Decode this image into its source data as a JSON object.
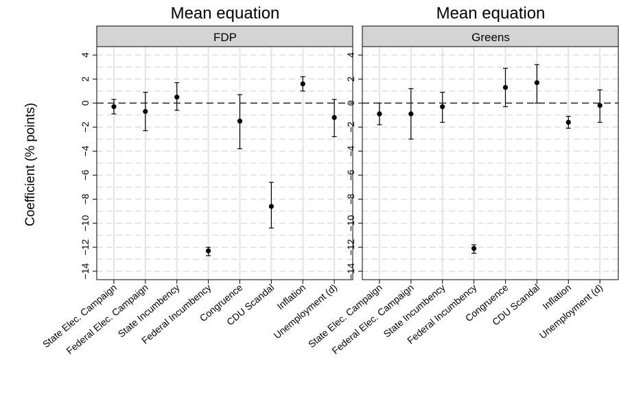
{
  "chart_data": {
    "type": "scatter",
    "ylabel": "Coefficient (% points)",
    "ylim": [
      -14.7,
      4.7
    ],
    "yticks": [
      4,
      2,
      0,
      -2,
      -4,
      -6,
      -8,
      -10,
      -12,
      -14
    ],
    "reference_line": 0,
    "categories": [
      "State Elec. Campaign",
      "Federal Elec. Campaign",
      "State Incumbency",
      "Federal Incumbency",
      "Congruence",
      "CDU Scandal",
      "Inflation",
      "Unemployment (d)"
    ],
    "panels": [
      {
        "title": "Mean equation",
        "strip": "FDP",
        "points": [
          {
            "est": -0.3,
            "lo": -0.9,
            "hi": 0.3
          },
          {
            "est": -0.7,
            "lo": -2.3,
            "hi": 0.9
          },
          {
            "est": 0.5,
            "lo": -0.6,
            "hi": 1.7
          },
          {
            "est": -12.3,
            "lo": -12.7,
            "hi": -12.0
          },
          {
            "est": -1.5,
            "lo": -3.8,
            "hi": 0.7
          },
          {
            "est": -8.6,
            "lo": -10.4,
            "hi": -6.6
          },
          {
            "est": 1.6,
            "lo": 1.0,
            "hi": 2.2
          },
          {
            "est": -1.2,
            "lo": -2.8,
            "hi": 0.3
          }
        ]
      },
      {
        "title": "Mean equation",
        "strip": "Greens",
        "points": [
          {
            "est": -0.9,
            "lo": -1.8,
            "hi": 0.0
          },
          {
            "est": -0.9,
            "lo": -3.0,
            "hi": 1.2
          },
          {
            "est": -0.3,
            "lo": -1.6,
            "hi": 0.9
          },
          {
            "est": -12.1,
            "lo": -12.5,
            "hi": -11.8
          },
          {
            "est": 1.3,
            "lo": -0.3,
            "hi": 2.9
          },
          {
            "est": 1.7,
            "lo": 0.0,
            "hi": 3.2
          },
          {
            "est": -1.6,
            "lo": -2.1,
            "hi": -1.1
          },
          {
            "est": -0.2,
            "lo": -1.6,
            "hi": 1.1
          }
        ]
      }
    ]
  }
}
